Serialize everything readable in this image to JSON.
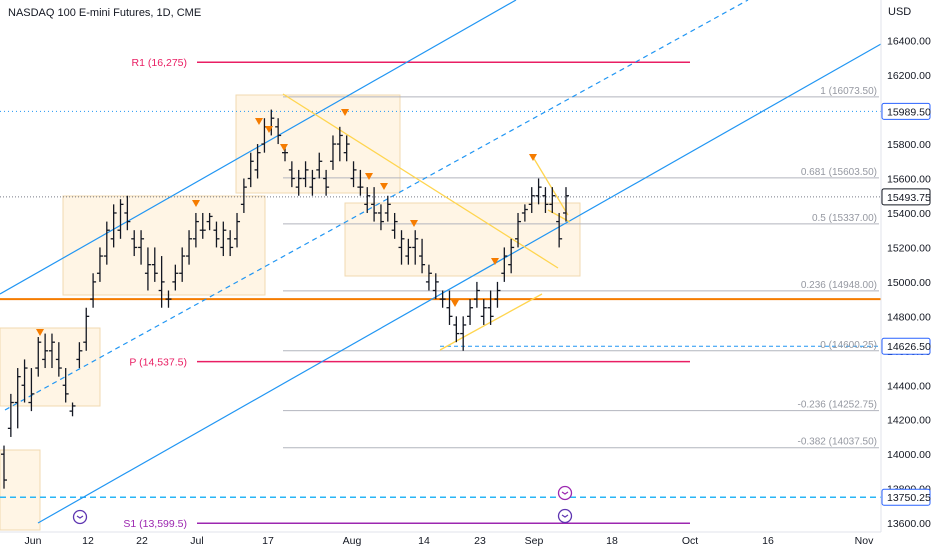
{
  "header": {
    "title": "NASDAQ 100 E-mini Futures, 1D, CME",
    "currency": "USD"
  },
  "y_axis": {
    "min": 13560,
    "max": 16520,
    "ticks": [
      "16400.00",
      "16200.00",
      "16000.00",
      "15800.00",
      "15600.00",
      "15400.00",
      "15200.00",
      "15000.00",
      "14800.00",
      "14600.00",
      "14400.00",
      "14200.00",
      "14000.00",
      "13800.00",
      "13600.00"
    ]
  },
  "x_axis": {
    "labels": [
      "Jun",
      "12",
      "22",
      "Jul",
      "17",
      "Aug",
      "14",
      "23",
      "Sep",
      "18",
      "Oct",
      "16",
      "Nov"
    ]
  },
  "price_badges": [
    {
      "text": "15989.50",
      "value": 15989.5,
      "bg": "#ffffff",
      "fg": "#131722",
      "border": "#2962ff"
    },
    {
      "text": "15493.75",
      "value": 15493.75,
      "bg": "#ffffff",
      "fg": "#131722",
      "border": "#131722"
    },
    {
      "text": "14626.50",
      "value": 14626.5,
      "bg": "#ffffff",
      "fg": "#131722",
      "border": "#2962ff"
    },
    {
      "text": "13750.25",
      "value": 13750.25,
      "bg": "#ffffff",
      "fg": "#131722",
      "border": "#2962ff"
    }
  ],
  "pivots": [
    {
      "label": "R1 (16,275)",
      "value": 16275,
      "color": "#e91e63"
    },
    {
      "label": "P (14,537.5)",
      "value": 14537.5,
      "color": "#e91e63"
    },
    {
      "label": "S1 (13,599.5)",
      "value": 13599.5,
      "color": "#9c27b0"
    }
  ],
  "fib_levels": [
    {
      "label": "1 (16073.50)",
      "value": 16073.5
    },
    {
      "label": "0.681 (15603.50)",
      "value": 15603.5
    },
    {
      "label": "0.5 (15337.00)",
      "value": 15337
    },
    {
      "label": "0.236 (14948.00)",
      "value": 14948
    },
    {
      "label": "0 (14600.25)",
      "value": 14600.25
    },
    {
      "label": "-0.236 (14252.75)",
      "value": 14252.75
    },
    {
      "label": "-0.382 (14037.50)",
      "value": 14037.5
    }
  ],
  "colors": {
    "channel": "#2196f3",
    "support": "#f57c00",
    "triangle": "#ffd54f",
    "box_fill": "#fff3e0",
    "marker": "#f57c00",
    "bar": "#131722",
    "current_line": "#787b86"
  },
  "chart_data": {
    "type": "ohlc",
    "title": "NASDAQ 100 E-mini Futures, 1D, CME",
    "unit": "USD",
    "ylim": [
      13560,
      16520
    ],
    "x_tick_labels": [
      "Jun",
      "12",
      "22",
      "Jul",
      "17",
      "Aug",
      "14",
      "23",
      "Sep",
      "18",
      "Oct",
      "16",
      "Nov"
    ],
    "last_price": 15493.75,
    "horizontal_levels": [
      15989.5,
      14900,
      14626.5,
      13750.25
    ],
    "bars": [
      [
        14000,
        14050,
        13800,
        13850
      ],
      [
        14150,
        14350,
        14100,
        14300
      ],
      [
        14300,
        14500,
        14150,
        14450
      ],
      [
        14400,
        14550,
        14300,
        14500
      ],
      [
        14300,
        14500,
        14250,
        14350
      ],
      [
        14500,
        14680,
        14450,
        14650
      ],
      [
        14550,
        14700,
        14500,
        14600
      ],
      [
        14600,
        14700,
        14500,
        14650
      ],
      [
        14550,
        14650,
        14450,
        14500
      ],
      [
        14400,
        14500,
        14300,
        14350
      ],
      [
        14250,
        14300,
        14220,
        14280
      ],
      [
        14550,
        14650,
        14500,
        14600
      ],
      [
        14650,
        14850,
        14600,
        14800
      ],
      [
        14900,
        15050,
        14850,
        15000
      ],
      [
        15050,
        15200,
        15000,
        15150
      ],
      [
        15150,
        15350,
        15100,
        15300
      ],
      [
        15250,
        15450,
        15200,
        15400
      ],
      [
        15300,
        15480,
        15250,
        15450
      ],
      [
        15400,
        15500,
        15300,
        15350
      ],
      [
        15250,
        15300,
        15150,
        15200
      ],
      [
        15200,
        15300,
        15100,
        15250
      ],
      [
        15050,
        15200,
        14950,
        15100
      ],
      [
        15100,
        15200,
        15000,
        15050
      ],
      [
        14950,
        15150,
        14850,
        15000
      ],
      [
        14900,
        14950,
        14850,
        14900
      ],
      [
        15000,
        15100,
        14950,
        15050
      ],
      [
        15050,
        15200,
        15000,
        15150
      ],
      [
        15150,
        15300,
        15100,
        15250
      ],
      [
        15250,
        15400,
        15200,
        15350
      ],
      [
        15300,
        15400,
        15250,
        15300
      ],
      [
        15350,
        15400,
        15300,
        15380
      ],
      [
        15300,
        15350,
        15200,
        15250
      ],
      [
        15200,
        15350,
        15150,
        15300
      ],
      [
        15250,
        15300,
        15150,
        15200
      ],
      [
        15250,
        15400,
        15200,
        15350
      ],
      [
        15450,
        15600,
        15400,
        15550
      ],
      [
        15600,
        15750,
        15550,
        15700
      ],
      [
        15650,
        15800,
        15600,
        15750
      ],
      [
        15800,
        15950,
        15750,
        15900
      ],
      [
        15900,
        16000,
        15850,
        15950
      ],
      [
        15900,
        15950,
        15800,
        15850
      ],
      [
        15750,
        15800,
        15700,
        15750
      ],
      [
        15650,
        15700,
        15550,
        15600
      ],
      [
        15550,
        15650,
        15500,
        15600
      ],
      [
        15600,
        15700,
        15550,
        15650
      ],
      [
        15550,
        15650,
        15500,
        15600
      ],
      [
        15650,
        15750,
        15600,
        15700
      ],
      [
        15600,
        15650,
        15500,
        15550
      ],
      [
        15700,
        15850,
        15650,
        15800
      ],
      [
        15800,
        15900,
        15700,
        15850
      ],
      [
        15750,
        15850,
        15700,
        15800
      ],
      [
        15600,
        15700,
        15550,
        15650
      ],
      [
        15550,
        15650,
        15500,
        15550
      ],
      [
        15450,
        15550,
        15400,
        15500
      ],
      [
        15450,
        15550,
        15350,
        15400
      ],
      [
        15400,
        15450,
        15300,
        15350
      ],
      [
        15400,
        15500,
        15350,
        15450
      ],
      [
        15300,
        15400,
        15250,
        15350
      ],
      [
        15200,
        15300,
        15100,
        15250
      ],
      [
        15150,
        15250,
        15100,
        15200
      ],
      [
        15200,
        15300,
        15100,
        15250
      ],
      [
        15150,
        15250,
        15050,
        15100
      ],
      [
        15000,
        15100,
        14950,
        15050
      ],
      [
        14950,
        15050,
        14900,
        15000
      ],
      [
        14900,
        14950,
        14850,
        14900
      ],
      [
        14850,
        14950,
        14750,
        14800
      ],
      [
        14750,
        14800,
        14650,
        14700
      ],
      [
        14700,
        14800,
        14600,
        14750
      ],
      [
        14800,
        14900,
        14750,
        14850
      ],
      [
        14900,
        15000,
        14850,
        14950
      ],
      [
        14800,
        14900,
        14750,
        14850
      ],
      [
        14850,
        14950,
        14750,
        14800
      ],
      [
        14900,
        15000,
        14850,
        14950
      ],
      [
        15050,
        15200,
        15000,
        15150
      ],
      [
        15100,
        15250,
        15050,
        15200
      ],
      [
        15250,
        15400,
        15200,
        15350
      ],
      [
        15400,
        15450,
        15350,
        15420
      ],
      [
        15450,
        15550,
        15400,
        15500
      ],
      [
        15500,
        15600,
        15450,
        15550
      ],
      [
        15500,
        15550,
        15400,
        15450
      ],
      [
        15450,
        15550,
        15400,
        15500
      ],
      [
        15350,
        15400,
        15200,
        15250
      ],
      [
        15400,
        15550,
        15350,
        15500
      ]
    ]
  }
}
